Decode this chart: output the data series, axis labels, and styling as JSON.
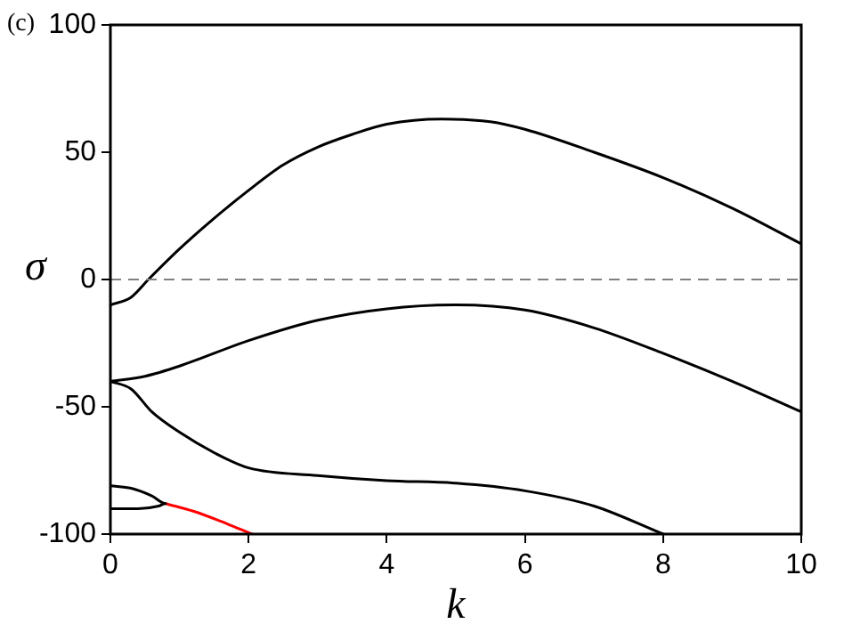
{
  "chart_data": {
    "type": "line",
    "title": "(c)",
    "xlabel": "k",
    "ylabel": "σ",
    "xlim": [
      0,
      10
    ],
    "xticks": [
      0,
      2,
      4,
      6,
      8,
      10
    ],
    "ylim": [
      -100,
      100
    ],
    "yticks": [
      -100,
      -50,
      0,
      50,
      100
    ],
    "grid": false,
    "legend": false,
    "marker": "none",
    "line_style": "solid",
    "ref_lines": [
      {
        "axis": "y",
        "value": 0,
        "color": "#808080",
        "line_style": "dashed"
      }
    ],
    "series": [
      {
        "color": "#000000",
        "x": [
          0,
          0.3,
          0.55,
          1,
          1.5,
          2,
          2.5,
          3,
          3.5,
          4,
          4.8,
          5.5,
          6,
          7,
          8,
          9,
          10
        ],
        "values": [
          -10,
          -7,
          0,
          12,
          24,
          35,
          45,
          52,
          57,
          61,
          63,
          62,
          59,
          50,
          40,
          28,
          14
        ]
      },
      {
        "color": "#000000",
        "x": [
          0,
          0.5,
          1,
          2,
          3,
          4,
          5,
          6,
          7,
          8,
          9,
          10
        ],
        "values": [
          -40,
          -38,
          -34,
          -24,
          -16,
          -11.5,
          -10,
          -12,
          -19,
          -29,
          -40,
          -52
        ]
      },
      {
        "color": "#000000",
        "x": [
          0,
          0.3,
          0.6,
          1,
          1.5,
          2,
          3,
          4,
          5,
          6,
          7,
          8
        ],
        "values": [
          -40,
          -43,
          -52,
          -60,
          -68,
          -74,
          -77,
          -79,
          -80,
          -83,
          -89,
          -100
        ]
      },
      {
        "color": "#000000",
        "x": [
          0,
          0.3,
          0.6,
          0.8,
          0.7,
          0.4,
          0
        ],
        "values": [
          -81,
          -82,
          -85,
          -88,
          -89,
          -90,
          -90
        ]
      },
      {
        "color": "#ff0000",
        "x": [
          0.8,
          1.2,
          1.6,
          2.05
        ],
        "values": [
          -88,
          -91,
          -95,
          -100
        ]
      }
    ]
  }
}
